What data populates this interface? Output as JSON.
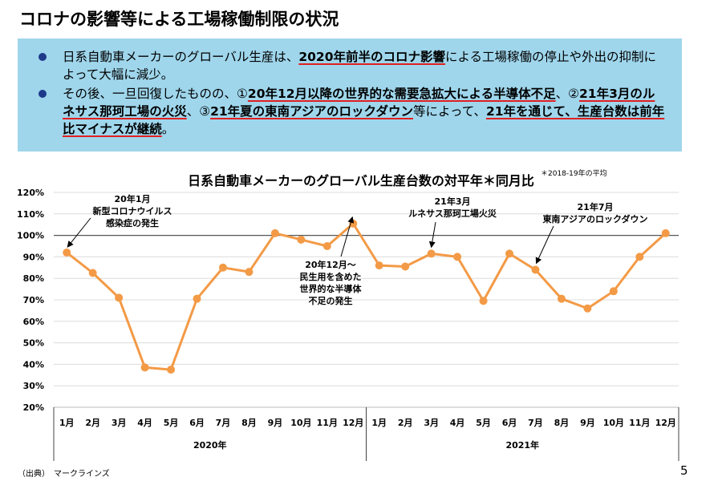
{
  "title": "コロナの影響等による工場稼働制限の状況",
  "bullets": [
    {
      "segments": [
        {
          "text": "日系自動車メーカーのグローバル生産は、",
          "bold": false
        },
        {
          "text": "2020年前半のコロナ影響",
          "bold": true
        },
        {
          "text": "による工場稼働の停止や外出の抑制によって大幅に減少。",
          "bold": false
        }
      ]
    },
    {
      "segments": [
        {
          "text": "その後、一旦回復したものの、①",
          "bold": false
        },
        {
          "text": "20年12月以降の世界的な需要急拡大による半導体不足",
          "bold": true
        },
        {
          "text": "、②",
          "bold": false
        },
        {
          "text": "21年3月のルネサス那珂工場の火災",
          "bold": true
        },
        {
          "text": "、③",
          "bold": false
        },
        {
          "text": "21年夏の東南アジアのロックダウン",
          "bold": true
        },
        {
          "text": "等によって、",
          "bold": false
        },
        {
          "text": "21年を通じて、生産台数は前年比マイナスが継続",
          "bold": true
        },
        {
          "text": "。",
          "bold": false
        }
      ]
    }
  ],
  "chart_title": "日系自動車メーカーのグローバル生産台数の対平年＊同月比",
  "chart_note": "＊2018-19年の平均",
  "chart_data": {
    "type": "line",
    "title": "日系自動車メーカーのグローバル生産台数の対平年＊同月比",
    "categories": [
      "1月",
      "2月",
      "3月",
      "4月",
      "5月",
      "6月",
      "7月",
      "8月",
      "9月",
      "10月",
      "11月",
      "12月",
      "1月",
      "2月",
      "3月",
      "4月",
      "5月",
      "6月",
      "7月",
      "8月",
      "9月",
      "10月",
      "11月",
      "12月"
    ],
    "groups": [
      {
        "label": "2020年",
        "count": 12
      },
      {
        "label": "2021年",
        "count": 12
      }
    ],
    "values": [
      92,
      82.5,
      71,
      38.5,
      37.5,
      70.5,
      85,
      83,
      101,
      98,
      95,
      105.5,
      86,
      85.5,
      91.5,
      90,
      69.5,
      91.5,
      84,
      70.5,
      66,
      74,
      90,
      101
    ],
    "ylim": [
      20,
      120
    ],
    "yticks": [
      "20%",
      "30%",
      "40%",
      "50%",
      "60%",
      "70%",
      "80%",
      "90%",
      "100%",
      "110%",
      "120%"
    ],
    "reference_line": 100,
    "grid": true,
    "color": "#f39a46",
    "annotations": [
      {
        "index": 0,
        "lines": [
          "20年1月",
          "新型コロナウイルス",
          "感染症の発生"
        ]
      },
      {
        "index": 11,
        "lines": [
          "20年12月～",
          "民生用を含めた",
          "世界的な半導体",
          "不足の発生"
        ]
      },
      {
        "index": 14,
        "lines": [
          "21年3月",
          "ルネサス那珂工場火災"
        ]
      },
      {
        "index": 18,
        "lines": [
          "21年7月",
          "東南アジアのロックダウン"
        ]
      }
    ]
  },
  "source": "（出典）　マークラインズ",
  "page_number": "5"
}
